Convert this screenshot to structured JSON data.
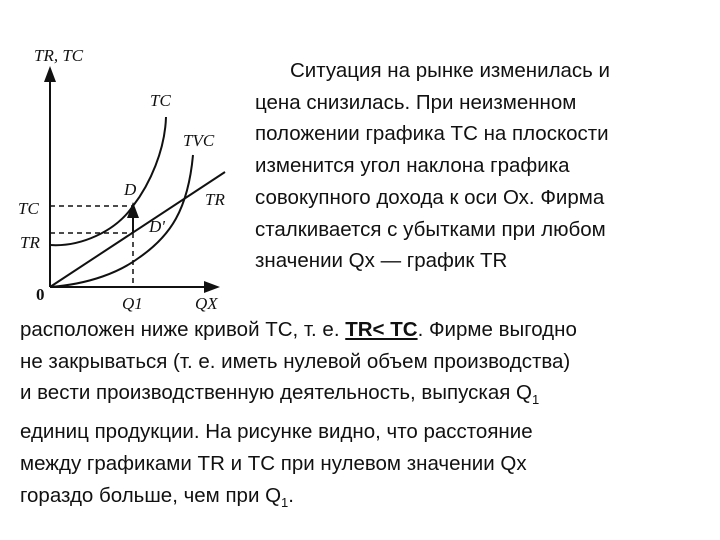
{
  "graph": {
    "y_axis_label": "TR, TC",
    "x_axis_label": "QX",
    "origin_label": "0",
    "q1_label": "Q1",
    "curve_labels": {
      "tc": "TC",
      "tvc": "TVC",
      "tr": "TR"
    },
    "point_labels": {
      "d": "D",
      "d_prime": "D'"
    },
    "y_tick_labels": {
      "tc": "TC",
      "tr": "TR"
    }
  },
  "text": {
    "right_lines": [
      "Ситуация на рынке изменилась и",
      "цена снизилась. При неизменном",
      "положении графика ТС на плоскости",
      "изменится угол наклона графика",
      "совокупного дохода к оси Ох. Фирма",
      "сталкивается с убытками при любом",
      "значении Qx — график TR"
    ],
    "bottom_line1_pre": "расположен ниже кривой ТС, т. е. ",
    "bottom_line1_bold": "TR< ТС",
    "bottom_line1_post": ". Фирме выгодно",
    "bottom_line2": "не закрываться (т. е. иметь нулевой объем производства)",
    "bottom_line3": "и вести производственную деятельность, выпуская Q",
    "bottom_line3_sub": "1",
    "bottom_line4": "единиц продукции. На рисунке видно, что расстояние",
    "bottom_line5": "между графиками TR и ТС при нулевом значении Qx",
    "bottom_line6": "гораздо больше, чем при Q",
    "bottom_line6_sub": "1",
    "bottom_line6_end": "."
  }
}
